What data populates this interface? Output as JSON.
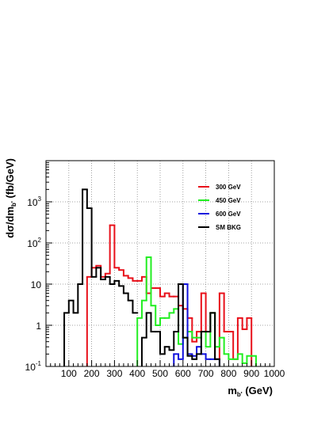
{
  "chart_data": {
    "type": "line",
    "style": "step-histogram",
    "title": "",
    "xlabel": {
      "main": "m",
      "sub": "b'",
      "rest": " (GeV)"
    },
    "ylabel": {
      "main": "dσ/dm",
      "sub": "b'",
      "rest": " (fb/GeV)"
    },
    "xlim": [
      0,
      1000
    ],
    "ylim": [
      0.1,
      10000
    ],
    "yscale": "log",
    "grid": true,
    "legend_position": "top-right",
    "x_ticks": [
      100,
      200,
      300,
      400,
      500,
      600,
      700,
      800,
      900,
      1000
    ],
    "x_tick_labels": [
      "100",
      "200",
      "300",
      "400",
      "500",
      "600",
      "700",
      "800",
      "900",
      "1000"
    ],
    "y_ticks": [
      0.1,
      1,
      10,
      100,
      1000
    ],
    "y_tick_labels": [
      {
        "base": "10",
        "exp": "-1"
      },
      {
        "base": "1",
        "exp": ""
      },
      {
        "base": "10",
        "exp": ""
      },
      {
        "base": "10",
        "exp": "2"
      },
      {
        "base": "10",
        "exp": "3"
      }
    ],
    "bin_width": 20,
    "series": [
      {
        "name": "300 GeV",
        "color": "#e8101a",
        "bins": [
          [
            180,
            15
          ],
          [
            200,
            25
          ],
          [
            220,
            28
          ],
          [
            240,
            15
          ],
          [
            260,
            18
          ],
          [
            280,
            270
          ],
          [
            300,
            25
          ],
          [
            320,
            22
          ],
          [
            340,
            16
          ],
          [
            360,
            14
          ],
          [
            380,
            12
          ],
          [
            400,
            12
          ],
          [
            420,
            15
          ],
          [
            440,
            6
          ],
          [
            460,
            8
          ],
          [
            480,
            8
          ],
          [
            500,
            5
          ],
          [
            520,
            6
          ],
          [
            540,
            5
          ],
          [
            560,
            5
          ],
          [
            580,
            3
          ],
          [
            600,
            2.5
          ],
          [
            620,
            1.5
          ],
          [
            640,
            0.4
          ],
          [
            660,
            0.7
          ],
          [
            680,
            6
          ],
          [
            700,
            0.7
          ],
          [
            720,
            2
          ],
          [
            740,
            0.15
          ],
          [
            760,
            6
          ],
          [
            780,
            0.7
          ],
          [
            800,
            0.7
          ],
          [
            820,
            0.15
          ],
          [
            840,
            1.5
          ],
          [
            860,
            0.8
          ],
          [
            880,
            1.5
          ]
        ]
      },
      {
        "name": "450 GeV",
        "color": "#22ee22",
        "bins": [
          [
            400,
            1.5
          ],
          [
            420,
            4
          ],
          [
            440,
            45
          ],
          [
            460,
            3
          ],
          [
            480,
            1
          ],
          [
            500,
            1.5
          ],
          [
            520,
            1.5
          ],
          [
            540,
            2
          ],
          [
            560,
            2.5
          ],
          [
            580,
            0.35
          ],
          [
            600,
            0.5
          ],
          [
            620,
            0.7
          ],
          [
            640,
            0.5
          ],
          [
            660,
            0.5
          ],
          [
            680,
            0.7
          ],
          [
            700,
            0.3
          ],
          [
            720,
            2
          ],
          [
            740,
            0.3
          ],
          [
            760,
            0.5
          ],
          [
            780,
            0.2
          ],
          [
            800,
            0.15
          ],
          [
            820,
            0.15
          ],
          [
            840,
            0.2
          ],
          [
            860,
            0.12
          ],
          [
            880,
            0.18
          ],
          [
            900,
            0.18
          ]
        ]
      },
      {
        "name": "600 GeV",
        "color": "#1010dd",
        "bins": [
          [
            560,
            0.2
          ],
          [
            580,
            0.15
          ],
          [
            600,
            10
          ],
          [
            620,
            0.2
          ],
          [
            640,
            0.18
          ],
          [
            660,
            0.3
          ],
          [
            680,
            0.2
          ],
          [
            700,
            0.15
          ],
          [
            720,
            0.15
          ],
          [
            740,
            0.15
          ]
        ]
      },
      {
        "name": "SM BKG",
        "color": "#000000",
        "bins": [
          [
            80,
            2
          ],
          [
            100,
            4
          ],
          [
            120,
            2
          ],
          [
            140,
            10
          ],
          [
            160,
            2000
          ],
          [
            180,
            700
          ],
          [
            200,
            15
          ],
          [
            220,
            25
          ],
          [
            240,
            13
          ],
          [
            260,
            15
          ],
          [
            280,
            10
          ],
          [
            300,
            12
          ],
          [
            320,
            9
          ],
          [
            340,
            6
          ],
          [
            360,
            4
          ],
          [
            380,
            2
          ],
          [
            420,
            0.5
          ],
          [
            440,
            2
          ],
          [
            460,
            0.7
          ],
          [
            480,
            0.7
          ],
          [
            500,
            0.2
          ],
          [
            520,
            0.3
          ],
          [
            540,
            0.25
          ],
          [
            560,
            0.7
          ],
          [
            580,
            10
          ],
          [
            600,
            0.5
          ],
          [
            620,
            0.18
          ],
          [
            640,
            0.15
          ],
          [
            660,
            0.2
          ],
          [
            680,
            0.7
          ],
          [
            700,
            0.7
          ],
          [
            720,
            2
          ],
          [
            740,
            0.15
          ]
        ]
      }
    ]
  }
}
